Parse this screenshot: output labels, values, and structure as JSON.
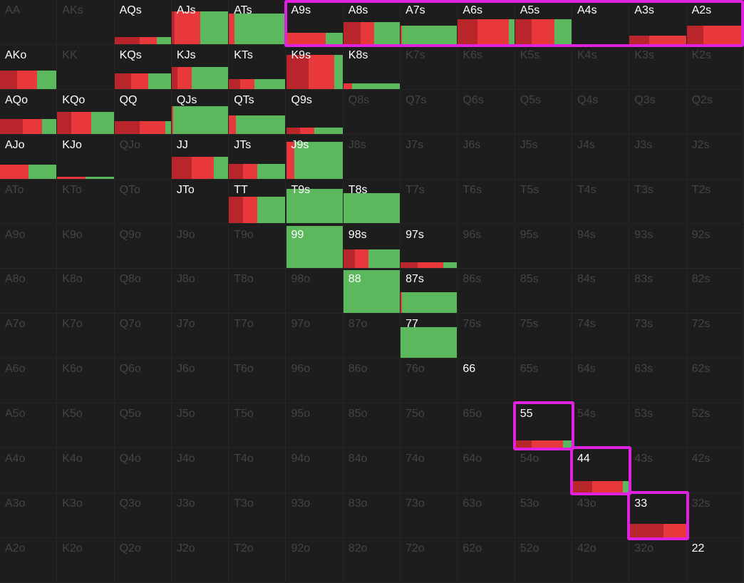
{
  "colors": {
    "raise_dark": "#b8262b",
    "raise": "#e8383c",
    "call": "#5cb85c",
    "highlight": "#e021e0",
    "label_active": "#ffffff",
    "label_inactive": "#444444"
  },
  "ranks": [
    "A",
    "K",
    "Q",
    "J",
    "T",
    "9",
    "8",
    "7",
    "6",
    "5",
    "4",
    "3",
    "2"
  ],
  "hands": {
    "AA": {
      "label": "AA",
      "active": false
    },
    "AKs": {
      "label": "AKs",
      "active": false
    },
    "AQs": {
      "label": "AQs",
      "active": true,
      "freq": 0.16,
      "mix": {
        "raise_dark": 0.45,
        "raise": 0.3,
        "call": 0.25
      }
    },
    "AJs": {
      "label": "AJs",
      "active": true,
      "freq": 0.74,
      "mix": {
        "raise_dark": 0.05,
        "raise": 0.45,
        "call": 0.5
      }
    },
    "ATs": {
      "label": "ATs",
      "active": true,
      "freq": 0.7,
      "mix": {
        "raise": 0.1,
        "call": 0.9
      }
    },
    "A9s": {
      "label": "A9s",
      "active": true,
      "freq": 0.25,
      "mix": {
        "raise": 0.7,
        "call": 0.3
      }
    },
    "A8s": {
      "label": "A8s",
      "active": true,
      "freq": 0.5,
      "mix": {
        "raise_dark": 0.3,
        "raise": 0.25,
        "call": 0.45
      }
    },
    "A7s": {
      "label": "A7s",
      "active": true,
      "freq": 0.42,
      "mix": {
        "raise": 0.02,
        "call": 0.98
      }
    },
    "A6s": {
      "label": "A6s",
      "active": true,
      "freq": 0.56,
      "mix": {
        "raise_dark": 0.35,
        "raise": 0.55,
        "call": 0.1
      }
    },
    "A5s": {
      "label": "A5s",
      "active": true,
      "freq": 0.56,
      "mix": {
        "raise_dark": 0.3,
        "raise": 0.4,
        "call": 0.3
      }
    },
    "A4s": {
      "label": "A4s",
      "active": true,
      "freq": 0.0
    },
    "A3s": {
      "label": "A3s",
      "active": true,
      "freq": 0.2,
      "mix": {
        "raise_dark": 0.35,
        "raise": 0.65
      }
    },
    "A2s": {
      "label": "A2s",
      "active": true,
      "freq": 0.42,
      "mix": {
        "raise_dark": 0.3,
        "raise": 0.7
      }
    },
    "AKo": {
      "label": "AKo",
      "active": true,
      "freq": 0.42,
      "mix": {
        "raise_dark": 0.3,
        "raise": 0.35,
        "call": 0.35
      }
    },
    "KK": {
      "label": "KK",
      "active": false
    },
    "KQs": {
      "label": "KQs",
      "active": true,
      "freq": 0.36,
      "mix": {
        "raise_dark": 0.3,
        "raise": 0.3,
        "call": 0.4
      }
    },
    "KJs": {
      "label": "KJs",
      "active": true,
      "freq": 0.5,
      "mix": {
        "raise_dark": 0.1,
        "raise": 0.25,
        "call": 0.65
      }
    },
    "KTs": {
      "label": "KTs",
      "active": true,
      "freq": 0.22,
      "mix": {
        "raise_dark": 0.2,
        "raise": 0.25,
        "call": 0.55
      }
    },
    "K9s": {
      "label": "K9s",
      "active": true,
      "freq": 0.78,
      "mix": {
        "raise_dark": 0.4,
        "raise": 0.45,
        "call": 0.15
      }
    },
    "K8s": {
      "label": "K8s",
      "active": true,
      "freq": 0.12,
      "mix": {
        "raise": 0.15,
        "call": 0.85
      }
    },
    "K7s": {
      "label": "K7s",
      "active": false
    },
    "K6s": {
      "label": "K6s",
      "active": false
    },
    "K5s": {
      "label": "K5s",
      "active": false
    },
    "K4s": {
      "label": "K4s",
      "active": false
    },
    "K3s": {
      "label": "K3s",
      "active": false
    },
    "K2s": {
      "label": "K2s",
      "active": false
    },
    "AQo": {
      "label": "AQo",
      "active": true,
      "freq": 0.34,
      "mix": {
        "raise_dark": 0.4,
        "raise": 0.35,
        "call": 0.25
      }
    },
    "KQo": {
      "label": "KQo",
      "active": true,
      "freq": 0.5,
      "mix": {
        "raise_dark": 0.25,
        "raise": 0.35,
        "call": 0.4
      }
    },
    "QQ": {
      "label": "QQ",
      "active": true,
      "freq": 0.28,
      "mix": {
        "raise_dark": 0.45,
        "raise": 0.45,
        "call": 0.1
      }
    },
    "QJs": {
      "label": "QJs",
      "active": true,
      "freq": 0.62,
      "mix": {
        "raise": 0.03,
        "call": 0.97
      }
    },
    "QTs": {
      "label": "QTs",
      "active": true,
      "freq": 0.42,
      "mix": {
        "raise": 0.12,
        "call": 0.88
      }
    },
    "Q9s": {
      "label": "Q9s",
      "active": true,
      "freq": 0.14,
      "mix": {
        "raise_dark": 0.25,
        "raise": 0.25,
        "call": 0.5
      }
    },
    "Q8s": {
      "label": "Q8s",
      "active": false
    },
    "Q7s": {
      "label": "Q7s",
      "active": false
    },
    "Q6s": {
      "label": "Q6s",
      "active": false
    },
    "Q5s": {
      "label": "Q5s",
      "active": false
    },
    "Q4s": {
      "label": "Q4s",
      "active": false
    },
    "Q3s": {
      "label": "Q3s",
      "active": false
    },
    "Q2s": {
      "label": "Q2s",
      "active": false
    },
    "AJo": {
      "label": "AJo",
      "active": true,
      "freq": 0.32,
      "mix": {
        "raise": 0.5,
        "call": 0.5
      }
    },
    "KJo": {
      "label": "KJo",
      "active": true,
      "freq": 0.04,
      "mix": {
        "raise": 0.5,
        "call": 0.5
      }
    },
    "QJo": {
      "label": "QJo",
      "active": false
    },
    "JJ": {
      "label": "JJ",
      "active": true,
      "freq": 0.5,
      "mix": {
        "raise_dark": 0.35,
        "raise": 0.4,
        "call": 0.25
      }
    },
    "JTs": {
      "label": "JTs",
      "active": true,
      "freq": 0.34,
      "mix": {
        "raise_dark": 0.25,
        "raise": 0.25,
        "call": 0.5
      }
    },
    "J9s": {
      "label": "J9s",
      "active": true,
      "freq": 0.84,
      "mix": {
        "raise": 0.15,
        "call": 0.85
      }
    },
    "J8s": {
      "label": "J8s",
      "active": false
    },
    "J7s": {
      "label": "J7s",
      "active": false
    },
    "J6s": {
      "label": "J6s",
      "active": false
    },
    "J5s": {
      "label": "J5s",
      "active": false
    },
    "J4s": {
      "label": "J4s",
      "active": false
    },
    "J3s": {
      "label": "J3s",
      "active": false
    },
    "J2s": {
      "label": "J2s",
      "active": false
    },
    "ATo": {
      "label": "ATo",
      "active": false
    },
    "KTo": {
      "label": "KTo",
      "active": false
    },
    "QTo": {
      "label": "QTo",
      "active": false
    },
    "JTo": {
      "label": "JTo",
      "active": true,
      "freq": 0.0
    },
    "TT": {
      "label": "TT",
      "active": true,
      "freq": 0.6,
      "mix": {
        "raise_dark": 0.25,
        "raise": 0.25,
        "call": 0.5
      }
    },
    "T9s": {
      "label": "T9s",
      "active": true,
      "freq": 0.78,
      "mix": {
        "call": 1.0
      }
    },
    "T8s": {
      "label": "T8s",
      "active": true,
      "freq": 0.68,
      "mix": {
        "call": 1.0
      }
    },
    "T7s": {
      "label": "T7s",
      "active": false
    },
    "T6s": {
      "label": "T6s",
      "active": false
    },
    "T5s": {
      "label": "T5s",
      "active": false
    },
    "T4s": {
      "label": "T4s",
      "active": false
    },
    "T3s": {
      "label": "T3s",
      "active": false
    },
    "T2s": {
      "label": "T2s",
      "active": false
    },
    "A9o": {
      "label": "A9o",
      "active": false
    },
    "K9o": {
      "label": "K9o",
      "active": false
    },
    "Q9o": {
      "label": "Q9o",
      "active": false
    },
    "J9o": {
      "label": "J9o",
      "active": false
    },
    "T9o": {
      "label": "T9o",
      "active": false
    },
    "99": {
      "label": "99",
      "active": true,
      "freq": 0.96,
      "mix": {
        "call": 1.0
      }
    },
    "98s": {
      "label": "98s",
      "active": true,
      "freq": 0.42,
      "mix": {
        "raise_dark": 0.2,
        "raise": 0.25,
        "call": 0.55
      }
    },
    "97s": {
      "label": "97s",
      "active": true,
      "freq": 0.14,
      "mix": {
        "raise_dark": 0.3,
        "raise": 0.45,
        "call": 0.25
      }
    },
    "96s": {
      "label": "96s",
      "active": false
    },
    "95s": {
      "label": "95s",
      "active": false
    },
    "94s": {
      "label": "94s",
      "active": false
    },
    "93s": {
      "label": "93s",
      "active": false
    },
    "92s": {
      "label": "92s",
      "active": false
    },
    "A8o": {
      "label": "A8o",
      "active": false
    },
    "K8o": {
      "label": "K8o",
      "active": false
    },
    "Q8o": {
      "label": "Q8o",
      "active": false
    },
    "J8o": {
      "label": "J8o",
      "active": false
    },
    "T8o": {
      "label": "T8o",
      "active": false
    },
    "98o": {
      "label": "98o",
      "active": false
    },
    "88": {
      "label": "88",
      "active": true,
      "freq": 0.98,
      "mix": {
        "call": 1.0
      }
    },
    "87s": {
      "label": "87s",
      "active": true,
      "freq": 0.48,
      "mix": {
        "raise": 0.03,
        "call": 0.97
      }
    },
    "86s": {
      "label": "86s",
      "active": false
    },
    "85s": {
      "label": "85s",
      "active": false
    },
    "84s": {
      "label": "84s",
      "active": false
    },
    "83s": {
      "label": "83s",
      "active": false
    },
    "82s": {
      "label": "82s",
      "active": false
    },
    "A7o": {
      "label": "A7o",
      "active": false
    },
    "K7o": {
      "label": "K7o",
      "active": false
    },
    "Q7o": {
      "label": "Q7o",
      "active": false
    },
    "J7o": {
      "label": "J7o",
      "active": false
    },
    "T7o": {
      "label": "T7o",
      "active": false
    },
    "97o": {
      "label": "97o",
      "active": false
    },
    "87o": {
      "label": "87o",
      "active": false
    },
    "77": {
      "label": "77",
      "active": true,
      "freq": 0.7,
      "mix": {
        "call": 1.0
      }
    },
    "76s": {
      "label": "76s",
      "active": false
    },
    "75s": {
      "label": "75s",
      "active": false
    },
    "74s": {
      "label": "74s",
      "active": false
    },
    "73s": {
      "label": "73s",
      "active": false
    },
    "72s": {
      "label": "72s",
      "active": false
    },
    "A6o": {
      "label": "A6o",
      "active": false
    },
    "K6o": {
      "label": "K6o",
      "active": false
    },
    "Q6o": {
      "label": "Q6o",
      "active": false
    },
    "J6o": {
      "label": "J6o",
      "active": false
    },
    "T6o": {
      "label": "T6o",
      "active": false
    },
    "96o": {
      "label": "96o",
      "active": false
    },
    "86o": {
      "label": "86o",
      "active": false
    },
    "76o": {
      "label": "76o",
      "active": false
    },
    "66": {
      "label": "66",
      "active": true,
      "freq": 0.0
    },
    "65s": {
      "label": "65s",
      "active": false
    },
    "64s": {
      "label": "64s",
      "active": false
    },
    "63s": {
      "label": "63s",
      "active": false
    },
    "62s": {
      "label": "62s",
      "active": false
    },
    "A5o": {
      "label": "A5o",
      "active": false
    },
    "K5o": {
      "label": "K5o",
      "active": false
    },
    "Q5o": {
      "label": "Q5o",
      "active": false
    },
    "J5o": {
      "label": "J5o",
      "active": false
    },
    "T5o": {
      "label": "T5o",
      "active": false
    },
    "95o": {
      "label": "95o",
      "active": false
    },
    "85o": {
      "label": "85o",
      "active": false
    },
    "75o": {
      "label": "75o",
      "active": false
    },
    "65o": {
      "label": "65o",
      "active": false
    },
    "55": {
      "label": "55",
      "active": true,
      "freq": 0.16,
      "mix": {
        "raise_dark": 0.3,
        "raise": 0.55,
        "call": 0.15
      }
    },
    "54s": {
      "label": "54s",
      "active": false
    },
    "53s": {
      "label": "53s",
      "active": false
    },
    "52s": {
      "label": "52s",
      "active": false
    },
    "A4o": {
      "label": "A4o",
      "active": false
    },
    "K4o": {
      "label": "K4o",
      "active": false
    },
    "Q4o": {
      "label": "Q4o",
      "active": false
    },
    "J4o": {
      "label": "J4o",
      "active": false
    },
    "T4o": {
      "label": "T4o",
      "active": false
    },
    "94o": {
      "label": "94o",
      "active": false
    },
    "84o": {
      "label": "84o",
      "active": false
    },
    "74o": {
      "label": "74o",
      "active": false
    },
    "64o": {
      "label": "64o",
      "active": false
    },
    "54o": {
      "label": "54o",
      "active": false
    },
    "44": {
      "label": "44",
      "active": true,
      "freq": 0.26,
      "mix": {
        "raise_dark": 0.35,
        "raise": 0.55,
        "call": 0.1
      }
    },
    "43s": {
      "label": "43s",
      "active": false
    },
    "42s": {
      "label": "42s",
      "active": false
    },
    "A3o": {
      "label": "A3o",
      "active": false
    },
    "K3o": {
      "label": "K3o",
      "active": false
    },
    "Q3o": {
      "label": "Q3o",
      "active": false
    },
    "J3o": {
      "label": "J3o",
      "active": false
    },
    "T3o": {
      "label": "T3o",
      "active": false
    },
    "93o": {
      "label": "93o",
      "active": false
    },
    "83o": {
      "label": "83o",
      "active": false
    },
    "73o": {
      "label": "73o",
      "active": false
    },
    "63o": {
      "label": "63o",
      "active": false
    },
    "53o": {
      "label": "53o",
      "active": false
    },
    "43o": {
      "label": "43o",
      "active": false
    },
    "33": {
      "label": "33",
      "active": true,
      "freq": 0.3,
      "mix": {
        "raise_dark": 0.6,
        "raise": 0.4
      }
    },
    "32s": {
      "label": "32s",
      "active": false
    },
    "A2o": {
      "label": "A2o",
      "active": false
    },
    "K2o": {
      "label": "K2o",
      "active": false
    },
    "Q2o": {
      "label": "Q2o",
      "active": false
    },
    "J2o": {
      "label": "J2o",
      "active": false
    },
    "T2o": {
      "label": "T2o",
      "active": false
    },
    "92o": {
      "label": "92o",
      "active": false
    },
    "82o": {
      "label": "82o",
      "active": false
    },
    "72o": {
      "label": "72o",
      "active": false
    },
    "62o": {
      "label": "62o",
      "active": false
    },
    "52o": {
      "label": "52o",
      "active": false
    },
    "42o": {
      "label": "42o",
      "active": false
    },
    "32o": {
      "label": "32o",
      "active": false
    },
    "22": {
      "label": "22",
      "active": true,
      "freq": 0.0
    }
  },
  "highlights": [
    {
      "name": "highlight-suited-aces",
      "from": "A9s",
      "to": "A2s"
    },
    {
      "name": "highlight-55",
      "from": "55",
      "to": "55"
    },
    {
      "name": "highlight-44",
      "from": "44",
      "to": "44"
    },
    {
      "name": "highlight-33",
      "from": "33",
      "to": "33"
    }
  ]
}
